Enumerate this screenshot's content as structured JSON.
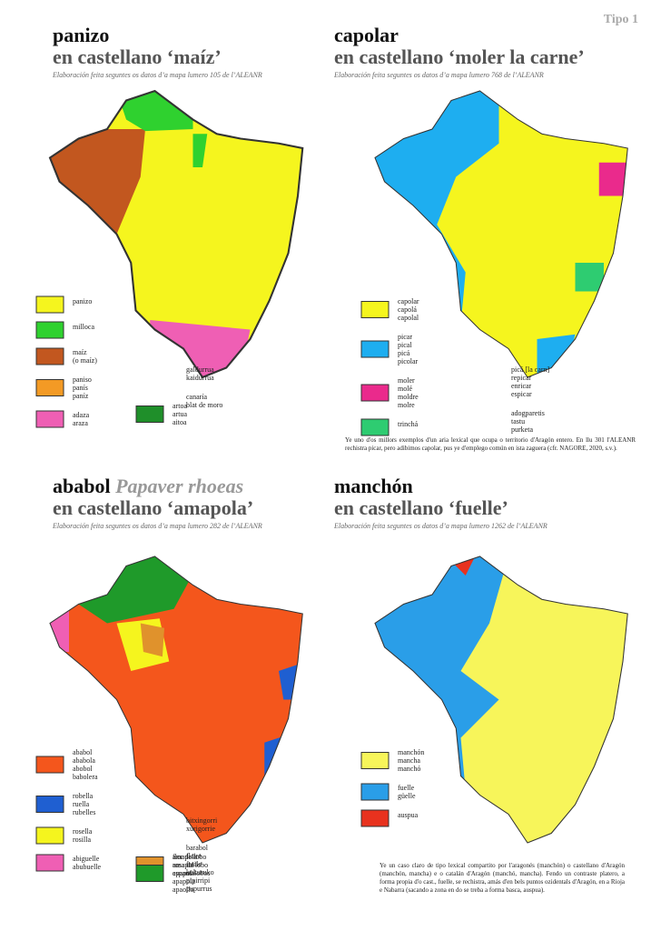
{
  "header": {
    "tag": "Tipo 1"
  },
  "panels": [
    {
      "title": "panizo",
      "subtitle": "en castellano ‘maíz’",
      "source": "Elaboración feita seguntes os datos d’a mapa lumero 105 de l’ALEANR",
      "legend": [
        {
          "color": "#f5f51e",
          "items": [
            "panizo"
          ]
        },
        {
          "color": "#2fd12f",
          "items": [
            "milloca"
          ]
        },
        {
          "color": "#c2571f",
          "items": [
            "maíz",
            "(o maíz)"
          ]
        },
        {
          "color": "#f39a25",
          "items": [
            "paniso",
            "panís",
            "paníz"
          ]
        },
        {
          "color": "#ef5fb4",
          "items": [
            "adaza",
            "araza"
          ]
        },
        {
          "color": "#1f8f2a",
          "items": [
            "artoa",
            "artua",
            "aitoa"
          ]
        },
        {
          "items": [
            "galdurrua",
            "kaidurrua"
          ]
        },
        {
          "items": [
            "canaría",
            "blat de moro"
          ]
        }
      ]
    },
    {
      "title": "capolar",
      "subtitle": "en castellano ‘moler la carne’",
      "source": "Elaboración feita seguntes os datos d’a mapa lumero 768 de l’ALEANR",
      "legend": [
        {
          "color": "#f5f51e",
          "items": [
            "capolar",
            "capolá",
            "capolal"
          ]
        },
        {
          "color": "#1eaef0",
          "items": [
            "picar",
            "pical",
            "picá",
            "picolar"
          ]
        },
        {
          "color": "#ea2a8c",
          "items": [
            "moler",
            "molé",
            "moldre",
            "molre"
          ]
        },
        {
          "color": "#2ecc71",
          "items": [
            "trinchá"
          ]
        },
        {
          "items": [
            "picá [la carn]",
            "repicar",
            "enricar",
            "espicar"
          ]
        },
        {
          "items": [
            "adogparetis",
            "tastu",
            "purketa"
          ]
        }
      ],
      "note": "Ye uno d'os millors exemplos d'un aria lexical que ocupa o territorio d'Aragón entero. En llu 301 l'ALEANR rechistra picar, pero adibimos capolar, pus ye d'emplego común en ista zaguera (cfr. NAGORE, 2020, s.v.)."
    },
    {
      "title": "ababol",
      "title_extra": "Papaver rhoeas",
      "subtitle": "en castellano ‘amapola’",
      "source": "Elaboración feita seguntes os datos d’a mapa lumero 282 de l’ALEANR",
      "legend": [
        {
          "color": "#f4561c",
          "items": [
            "ababol",
            "ababola",
            "abobol",
            "babolera"
          ]
        },
        {
          "color": "#1f5fd1",
          "items": [
            "robella",
            "ruella",
            "rubelles"
          ]
        },
        {
          "color": "#f5f51e",
          "items": [
            "rosella",
            "rosilla"
          ]
        },
        {
          "color": "#ef5fb4",
          "items": [
            "abiguelle",
            "abubuelle"
          ]
        },
        {
          "color": "#e0922c",
          "items": [
            "flor de lobo",
            "rosa de lobo",
            "espantalobos"
          ]
        },
        {
          "color": "#1f9a2a",
          "items": [
            "amapola",
            "amapol",
            "apapol",
            "apapola",
            "apaollo"
          ]
        },
        {
          "items": [
            "bitxingorri",
            "xurigorrie"
          ]
        },
        {
          "items": [
            "barabol",
            "flaire",
            "fraile",
            "kukuruko",
            "pipirripi",
            "pupurrus"
          ]
        }
      ]
    },
    {
      "title": "manchón",
      "subtitle": "en castellano ‘fuelle’",
      "source": "Elaboración feita seguntes os datos d’a mapa lumero 1262 de l’ALEANR",
      "legend": [
        {
          "color": "#f7f55a",
          "items": [
            "manchón",
            "mancha",
            "manchó"
          ]
        },
        {
          "color": "#2a9ee8",
          "items": [
            "fuelle",
            "güelle"
          ]
        },
        {
          "color": "#e8321e",
          "items": [
            "auspua"
          ]
        }
      ],
      "note": "Ye un caso claro de tipo lexical compartito por l'aragonés (manchón) o castellano d'Aragón (manchón, mancha) e o catalán d'Aragón (manchó, mancha). Fendo un contraste platero, a forma propia d'o cast., fuelle, se rechistra, amás d'en bels puntos ozidentals d'Aragón, en a Rioja e Nabarra (sacando a zona en do se treba a forma basca, auspua)."
    }
  ]
}
